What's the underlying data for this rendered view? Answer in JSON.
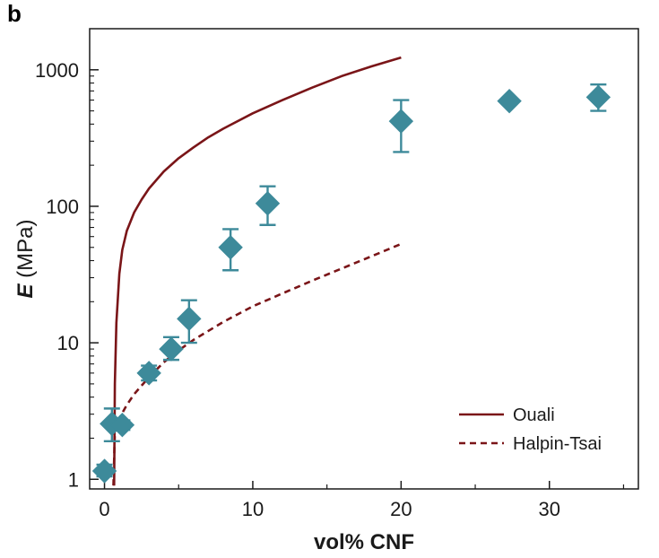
{
  "panel_label": "b",
  "colors": {
    "model_line": "#7a1518",
    "marker_fill": "#3d8a9a",
    "error_bar": "#3d8a9a",
    "axis": "#1a1a1a"
  },
  "chart_data": {
    "type": "scatter",
    "xlabel": "vol% CNF",
    "ylabel_symbol": "E",
    "ylabel_unit": " (MPa)",
    "xlim": [
      -1,
      36
    ],
    "ylim": [
      0.85,
      2000
    ],
    "yscale": "log",
    "xticks": [
      0,
      10,
      20,
      30
    ],
    "xtick_labels": [
      "0",
      "10",
      "20",
      "30"
    ],
    "yticks": [
      1,
      10,
      100,
      1000
    ],
    "ytick_labels": [
      "1",
      "10",
      "100",
      "1000"
    ],
    "grid": false,
    "legend_position": "bottom-right",
    "measured": {
      "marker": "diamond",
      "points": [
        {
          "x": 0,
          "y": 1.15,
          "err_low": 1.05,
          "err_high": 1.28
        },
        {
          "x": 0.5,
          "y": 2.55,
          "err_low": 1.9,
          "err_high": 3.3
        },
        {
          "x": 1.2,
          "y": 2.5,
          "err_low": 2.3,
          "err_high": 2.7
        },
        {
          "x": 3,
          "y": 6,
          "err_low": 5.3,
          "err_high": 6.8
        },
        {
          "x": 4.5,
          "y": 9,
          "err_low": 7.5,
          "err_high": 11
        },
        {
          "x": 5.7,
          "y": 15,
          "err_low": 10,
          "err_high": 20.5
        },
        {
          "x": 8.5,
          "y": 50,
          "err_low": 34,
          "err_high": 68
        },
        {
          "x": 11,
          "y": 105,
          "err_low": 73,
          "err_high": 140
        },
        {
          "x": 20,
          "y": 420,
          "err_low": 250,
          "err_high": 600
        },
        {
          "x": 27.3,
          "y": 590,
          "err_low": null,
          "err_high": null
        },
        {
          "x": 33.3,
          "y": 630,
          "err_low": 500,
          "err_high": 780
        }
      ]
    },
    "series": [
      {
        "name": "Ouali",
        "style": "solid",
        "x": [
          0.65,
          0.7,
          0.8,
          1,
          1.2,
          1.5,
          2,
          2.5,
          3,
          4,
          5,
          6,
          7,
          8,
          10,
          12,
          14,
          16,
          18,
          20
        ],
        "y": [
          0.9,
          5,
          14,
          32,
          48,
          66,
          90,
          112,
          135,
          180,
          225,
          270,
          320,
          370,
          480,
          600,
          740,
          900,
          1060,
          1230
        ]
      },
      {
        "name": "Halpin-Tsai",
        "style": "dashed",
        "x": [
          0.6,
          0.7,
          0.8,
          1,
          1.5,
          2,
          3,
          4,
          5,
          6,
          8,
          10,
          12,
          14,
          16,
          18,
          20
        ],
        "y": [
          0.9,
          2.2,
          2.5,
          2.8,
          3.5,
          4.2,
          5.6,
          7.2,
          8.8,
          10.5,
          14.2,
          18.5,
          23,
          28.5,
          35,
          43,
          53
        ]
      }
    ]
  }
}
